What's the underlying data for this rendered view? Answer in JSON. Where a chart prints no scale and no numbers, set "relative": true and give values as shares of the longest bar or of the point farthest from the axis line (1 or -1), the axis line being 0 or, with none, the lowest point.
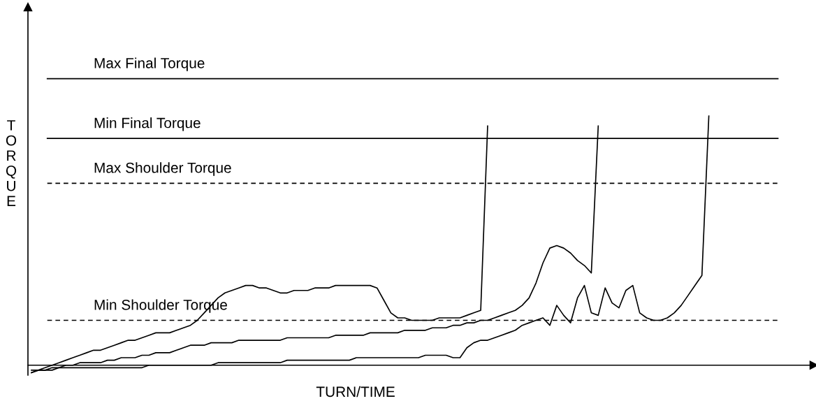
{
  "chart_data": {
    "type": "line",
    "relative": true,
    "xlabel": "TURN/TIME",
    "ylabel": "TORQUE",
    "legend": false,
    "marker": "none",
    "line_style": "solid",
    "categories": [
      null,
      null,
      null,
      null,
      null,
      null,
      null,
      null,
      null,
      null,
      null,
      null,
      null,
      null,
      null,
      null,
      null,
      null,
      null,
      null,
      null,
      null,
      null,
      null,
      null,
      null,
      null,
      null,
      null,
      null,
      null,
      null,
      null,
      null,
      null,
      null,
      null,
      null,
      null,
      null,
      null,
      null,
      null,
      null,
      null,
      null,
      null,
      null,
      null,
      null,
      null,
      null,
      null,
      null,
      null,
      null,
      null,
      null,
      null,
      null,
      null,
      null,
      null,
      null,
      null,
      null,
      null,
      null,
      null,
      null,
      null,
      null,
      null,
      null,
      null,
      null,
      null,
      null,
      null,
      null,
      null,
      null,
      null,
      null,
      null,
      null,
      null,
      null,
      null,
      null,
      null,
      null,
      null,
      null,
      null,
      null,
      null,
      null,
      null,
      null,
      null,
      null,
      null,
      null,
      null,
      null,
      null,
      null,
      null,
      null,
      null,
      null,
      null
    ],
    "series": [
      {
        "color": "#000000",
        "values": [
          -0.03,
          -0.02,
          -0.01,
          0,
          0.01,
          0.02,
          0.03,
          0.04,
          0.05,
          0.06,
          0.06,
          0.07,
          0.08,
          0.09,
          0.1,
          0.1,
          0.11,
          0.12,
          0.13,
          0.13,
          0.13,
          0.14,
          0.15,
          0.16,
          0.18,
          0.21,
          0.24,
          0.27,
          0.29,
          0.3,
          0.31,
          0.32,
          0.32,
          0.31,
          0.31,
          0.3,
          0.29,
          0.29,
          0.3,
          0.3,
          0.3,
          0.31,
          0.31,
          0.31,
          0.32,
          0.32,
          0.32,
          0.32,
          0.32,
          0.32,
          0.31,
          0.26,
          0.21,
          0.19,
          0.19,
          0.18,
          0.18,
          0.18,
          0.18,
          0.19,
          0.19,
          0.19,
          0.19,
          0.2,
          0.21,
          0.22,
          0.96,
          null,
          null,
          null,
          null,
          null,
          null,
          null,
          null,
          null,
          null,
          null,
          null,
          null,
          null,
          null,
          null,
          null,
          null,
          null,
          null,
          null,
          null,
          null,
          null,
          null,
          null,
          null,
          null,
          null,
          null,
          null,
          null,
          null,
          null,
          null,
          null,
          null,
          null,
          null,
          null,
          null,
          null,
          null,
          null,
          null,
          null
        ]
      },
      {
        "color": "#000000",
        "values": [
          -0.03,
          -0.02,
          -0.02,
          -0.01,
          -0.01,
          0,
          0,
          0.01,
          0.01,
          0.01,
          0.01,
          0.02,
          0.02,
          0.03,
          0.03,
          0.03,
          0.04,
          0.04,
          0.05,
          0.05,
          0.05,
          0.06,
          0.07,
          0.08,
          0.08,
          0.08,
          0.09,
          0.09,
          0.09,
          0.09,
          0.1,
          0.1,
          0.1,
          0.1,
          0.1,
          0.1,
          0.1,
          0.11,
          0.11,
          0.11,
          0.11,
          0.11,
          0.11,
          0.11,
          0.12,
          0.12,
          0.12,
          0.12,
          0.12,
          0.13,
          0.13,
          0.13,
          0.13,
          0.13,
          0.14,
          0.14,
          0.14,
          0.14,
          0.15,
          0.15,
          0.15,
          0.16,
          0.16,
          0.17,
          0.17,
          0.18,
          0.18,
          0.19,
          0.2,
          0.21,
          0.22,
          0.24,
          0.27,
          0.33,
          0.41,
          0.47,
          0.48,
          0.47,
          0.45,
          0.42,
          0.4,
          0.37,
          0.96,
          null,
          null,
          null,
          null,
          null,
          null,
          null,
          null,
          null,
          null,
          null,
          null,
          null,
          null,
          null,
          null,
          null,
          null,
          null,
          null,
          null,
          null,
          null,
          null,
          null,
          null,
          null,
          null,
          null,
          null
        ]
      },
      {
        "color": "#000000",
        "values": [
          -0.02,
          -0.02,
          -0.02,
          -0.02,
          -0.01,
          -0.01,
          -0.01,
          -0.01,
          -0.01,
          -0.01,
          -0.01,
          -0.01,
          -0.01,
          -0.01,
          -0.01,
          -0.01,
          -0.01,
          0,
          0,
          0,
          0,
          0,
          0,
          0,
          0,
          0,
          0,
          0.01,
          0.01,
          0.01,
          0.01,
          0.01,
          0.01,
          0.01,
          0.01,
          0.01,
          0.01,
          0.02,
          0.02,
          0.02,
          0.02,
          0.02,
          0.02,
          0.02,
          0.02,
          0.02,
          0.02,
          0.03,
          0.03,
          0.03,
          0.03,
          0.03,
          0.03,
          0.03,
          0.03,
          0.03,
          0.03,
          0.04,
          0.04,
          0.04,
          0.04,
          0.03,
          0.03,
          0.07,
          0.09,
          0.1,
          0.1,
          0.11,
          0.12,
          0.13,
          0.14,
          0.16,
          0.17,
          0.18,
          0.19,
          0.16,
          0.24,
          0.2,
          0.17,
          0.27,
          0.32,
          0.21,
          0.2,
          0.31,
          0.25,
          0.23,
          0.3,
          0.32,
          0.21,
          0.19,
          0.18,
          0.18,
          0.19,
          0.21,
          0.24,
          0.28,
          0.32,
          0.36,
          1.0,
          null,
          null,
          null,
          null,
          null,
          null,
          null,
          null,
          null,
          null,
          null,
          null,
          null,
          null
        ]
      }
    ],
    "ref_lines": [
      {
        "axis": "y",
        "value": 1.15,
        "label": "Max Final Torque",
        "color": "#000000",
        "line_style": "solid"
      },
      {
        "axis": "y",
        "value": 0.91,
        "label": "Min Final Torque",
        "color": "#000000",
        "line_style": "solid"
      },
      {
        "axis": "y",
        "value": 0.73,
        "label": "Max Shoulder Torque",
        "color": "#000000",
        "line_style": "dashed"
      },
      {
        "axis": "y",
        "value": 0.18,
        "label": "Min Shoulder Torque",
        "color": "#000000",
        "line_style": "dashed"
      }
    ]
  }
}
